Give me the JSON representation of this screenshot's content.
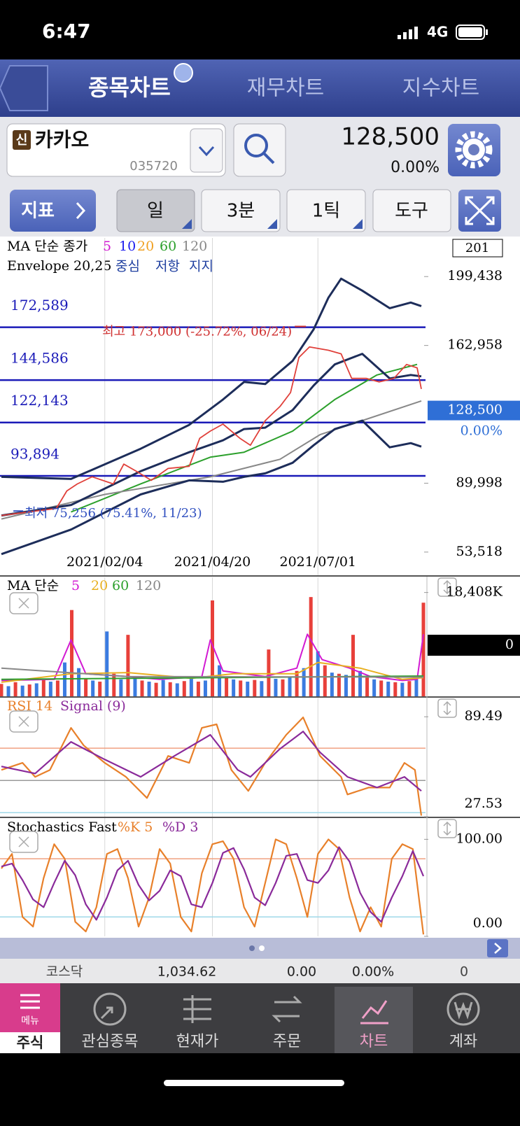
{
  "status_bar": {
    "time": "6:47",
    "network": "4G"
  },
  "tabs": [
    "종목차트",
    "재무차트",
    "지수차트"
  ],
  "stock": {
    "badge": "신",
    "name": "카카오",
    "code": "035720",
    "price": "128,500",
    "change_rate": "0.00%"
  },
  "toolbar": {
    "indicator": "지표",
    "period": "일",
    "minute": "3분",
    "tick": "1틱",
    "tools": "도구"
  },
  "price_panel": {
    "title": "MA 단순 종가",
    "envelope_title": "Envelope 20,25",
    "count": "201",
    "xlim": [
      0,
      200
    ],
    "xticks": [
      {
        "value": 49,
        "label": "2021/02/04"
      },
      {
        "value": 100,
        "label": "2021/04/20"
      },
      {
        "value": 150,
        "label": "2021/07/01"
      }
    ],
    "grid": true,
    "ylim": [
      41240,
      219900
    ],
    "yticks": [
      {
        "value": 199438,
        "label": "199,438"
      },
      {
        "value": 162958,
        "label": "162,958"
      },
      {
        "value": 89998,
        "label": "89,998"
      },
      {
        "value": 53518,
        "label": "53,518"
      }
    ],
    "current": {
      "value": 128500,
      "label": "128,500",
      "rate": "0.00%"
    },
    "levels": [
      {
        "value": 172589,
        "label": "172,589"
      },
      {
        "value": 144586,
        "label": "144,586"
      },
      {
        "value": 122143,
        "label": "122,143"
      },
      {
        "value": 93894,
        "label": "93,894"
      }
    ],
    "level_color": "#1a1ab8",
    "high": {
      "x": 143,
      "value": 173000,
      "label": "최고 173,000 (-25.72%, 06/24)"
    },
    "low": {
      "x": 7,
      "value": 75256,
      "label": "최저 75,256 (75.41%, 11/23)"
    },
    "close": {
      "color": "#e0403a",
      "x": [
        0,
        13,
        26,
        31,
        36,
        43,
        53,
        58,
        64,
        71,
        79,
        89,
        94,
        99,
        105,
        113,
        118,
        125,
        132,
        137,
        141,
        146,
        155,
        161,
        166,
        173,
        179,
        186,
        192,
        197,
        199
      ],
      "values": [
        72900,
        74800,
        76600,
        85900,
        89600,
        93400,
        89600,
        100100,
        96300,
        91500,
        97800,
        98900,
        113800,
        117600,
        121300,
        113800,
        110100,
        123100,
        130600,
        138000,
        156600,
        162200,
        160400,
        158500,
        145500,
        145500,
        143600,
        145500,
        152900,
        151100,
        139900
      ]
    },
    "ma": [
      {
        "name": "5",
        "color": "#d21ad2"
      },
      {
        "name": "10",
        "color": "#1a1aee"
      },
      {
        "name": "20",
        "color": "#f0a020"
      },
      {
        "name": "60",
        "color": "#2ca02c",
        "x": [
          33,
          66,
          99,
          115,
          138,
          158,
          178,
          197
        ],
        "values": [
          74750,
          89640,
          103780,
          106390,
          117550,
          134300,
          147330,
          152910
        ]
      },
      {
        "name": "120",
        "color": "#888888",
        "x": [
          0,
          49,
          99,
          132,
          151,
          171,
          199
        ],
        "values": [
          71030,
          84060,
          93360,
          102670,
          115690,
          123140,
          133560
        ]
      }
    ],
    "envelope": [
      {
        "name": "중심",
        "color": "#1d2d5a",
        "x": [
          0,
          33,
          66,
          89,
          105,
          115,
          125,
          138,
          148,
          158,
          171,
          184,
          194,
          199
        ],
        "values": [
          72890,
          78470,
          96340,
          106390,
          112720,
          118670,
          119420,
          128720,
          141750,
          152910,
          158500,
          145470,
          147330,
          146590
        ]
      },
      {
        "name": "저항",
        "color": "#1d2d5a",
        "x": [
          0,
          33,
          66,
          89,
          105,
          115,
          125,
          138,
          148,
          155,
          161,
          171,
          184,
          194,
          199
        ],
        "values": [
          93360,
          92240,
          108250,
          120900,
          134300,
          143610,
          142490,
          154770,
          171520,
          188270,
          198320,
          191990,
          182690,
          185670,
          183810
        ]
      },
      {
        "name": "지지",
        "color": "#1d2d5a",
        "x": [
          0,
          33,
          66,
          89,
          105,
          115,
          125,
          138,
          148,
          158,
          171,
          184,
          194,
          199
        ],
        "values": [
          52420,
          65450,
          84060,
          91500,
          90760,
          93360,
          95220,
          100810,
          110110,
          118670,
          123140,
          108990,
          111230,
          109370
        ]
      }
    ]
  },
  "volume_panel": {
    "title": "MA 단순",
    "ylim": [
      0,
      21093
    ],
    "yticks": [
      {
        "value": 18408,
        "label": "18,408K"
      }
    ],
    "current_volume": 0,
    "bar_colors": [
      "#e8403a",
      "#3b7be0"
    ],
    "values": [
      2200,
      1800,
      2500,
      1900,
      2100,
      2300,
      3000,
      2600,
      2800,
      6000,
      15300,
      5000,
      3200,
      2800,
      2600,
      11500,
      4000,
      3000,
      10900,
      3500,
      2800,
      2600,
      2400,
      2900,
      2500,
      2300,
      2700,
      3200,
      2600,
      2800,
      17000,
      5500,
      3500,
      3000,
      2800,
      2600,
      2900,
      2700,
      8300,
      3100,
      3000,
      3500,
      4500,
      5000,
      17600,
      8000,
      5500,
      4200,
      4000,
      3800,
      10900,
      4500,
      3500,
      3000,
      2800,
      2600,
      2500,
      2400,
      2700,
      3500,
      16600
    ],
    "ma": [
      {
        "name": "5",
        "color": "#d21ad2",
        "x": [
          0,
          25,
          33,
          40,
          60,
          75,
          95,
          99,
          105,
          125,
          140,
          145,
          152,
          165,
          175,
          190,
          197,
          200
        ],
        "values": [
          2800,
          3000,
          10000,
          4000,
          3500,
          3000,
          3500,
          10000,
          4500,
          3500,
          5000,
          11000,
          6500,
          5000,
          3500,
          2800,
          3000,
          11000
        ]
      },
      {
        "name": "20",
        "color": "#e8b020",
        "x": [
          0,
          33,
          60,
          90,
          110,
          140,
          150,
          170,
          190,
          200
        ],
        "values": [
          2500,
          4000,
          4200,
          3200,
          4000,
          4000,
          6000,
          5000,
          3000,
          3300
        ]
      },
      {
        "name": "60",
        "color": "#2ca02c",
        "x": [
          0,
          100,
          200
        ],
        "values": [
          3000,
          3300,
          3600
        ]
      },
      {
        "name": "120",
        "color": "#888888",
        "x": [
          0,
          60,
          200
        ],
        "values": [
          5000,
          3500,
          3400
        ]
      }
    ]
  },
  "rsi_panel": {
    "ylim": [
      27.53,
      101.3
    ],
    "yticks": [
      89.49,
      27.53
    ],
    "levels": [
      {
        "value": 70,
        "color": "#f0a080"
      },
      {
        "value": 50,
        "color": "#999999"
      },
      {
        "value": 30,
        "color": "#9fd8e8"
      }
    ],
    "series": [
      {
        "name": "RSI 14",
        "color": "#e8802a",
        "x": [
          0,
          10,
          16,
          23,
          33,
          39,
          49,
          59,
          69,
          79,
          89,
          95,
          102,
          109,
          117,
          125,
          135,
          143,
          151,
          161,
          164,
          174,
          184,
          191,
          196,
          199
        ],
        "values": [
          56.5,
          60.9,
          52.2,
          56.5,
          82.6,
          71.7,
          60.9,
          52.2,
          39.1,
          65.2,
          60.9,
          82.6,
          84.8,
          56.5,
          43.5,
          60.9,
          78.3,
          89.1,
          65.2,
          52.2,
          41.3,
          45.6,
          45.6,
          60.9,
          56.5,
          28.2
        ]
      },
      {
        "name": "Signal (9)",
        "color": "#8a2a9a",
        "x": [
          0,
          16,
          33,
          49,
          66,
          82,
          99,
          112,
          118,
          132,
          143,
          151,
          164,
          178,
          191,
          199
        ],
        "values": [
          58.7,
          54.3,
          73.9,
          63.0,
          52.2,
          65.2,
          78.3,
          56.5,
          52.2,
          69.6,
          80.4,
          67.4,
          52.2,
          45.6,
          52.2,
          43.5
        ]
      }
    ]
  },
  "stoch_panel": {
    "title": "Stochastics Fast",
    "ylim": [
      0,
      121.9
    ],
    "yticks": [
      {
        "value": 100,
        "label": "100.00"
      },
      {
        "value": 0,
        "label": "0.00"
      }
    ],
    "levels": [
      {
        "value": 80,
        "color": "#f0a080"
      },
      {
        "value": 20,
        "color": "#9fd8e8"
      }
    ],
    "series": [
      {
        "name": "%K 5",
        "color": "#e8802a",
        "x": [
          0,
          5,
          10,
          15,
          20,
          25,
          30,
          35,
          40,
          45,
          50,
          55,
          60,
          65,
          70,
          75,
          80,
          85,
          90,
          95,
          100,
          105,
          110,
          115,
          120,
          125,
          130,
          135,
          140,
          145,
          150,
          155,
          160,
          165,
          170,
          175,
          180,
          185,
          190,
          195,
          200
        ],
        "values": [
          70,
          85,
          20,
          10,
          60,
          95,
          80,
          15,
          5,
          30,
          85,
          90,
          60,
          10,
          40,
          90,
          75,
          20,
          5,
          65,
          95,
          98,
          80,
          30,
          10,
          55,
          100,
          95,
          60,
          20,
          85,
          100,
          90,
          40,
          5,
          30,
          10,
          80,
          95,
          90,
          2
        ]
      },
      {
        "name": "%D 3",
        "color": "#8a2a9a",
        "x": [
          0,
          5,
          10,
          15,
          20,
          25,
          30,
          35,
          40,
          45,
          50,
          55,
          60,
          65,
          70,
          75,
          80,
          85,
          90,
          95,
          100,
          105,
          110,
          115,
          120,
          125,
          130,
          135,
          140,
          145,
          150,
          155,
          160,
          165,
          170,
          175,
          180,
          185,
          190,
          195,
          200
        ],
        "values": [
          72,
          75,
          58,
          38,
          30,
          55,
          78,
          63,
          33,
          17,
          40,
          68,
          78,
          53,
          37,
          47,
          68,
          62,
          33,
          30,
          55,
          86,
          91,
          69,
          40,
          32,
          55,
          83,
          85,
          58,
          55,
          68,
          92,
          77,
          45,
          25,
          15,
          40,
          62,
          88,
          62
        ]
      }
    ]
  },
  "index_bar": {
    "name": "코스닥",
    "value": "1,034.62",
    "change": "0.00",
    "rate": "0.00%",
    "volume": "0"
  },
  "nav": {
    "menu": "메뉴",
    "items": [
      "주식",
      "관심종목",
      "현재가",
      "주문",
      "차트",
      "계좌"
    ]
  }
}
